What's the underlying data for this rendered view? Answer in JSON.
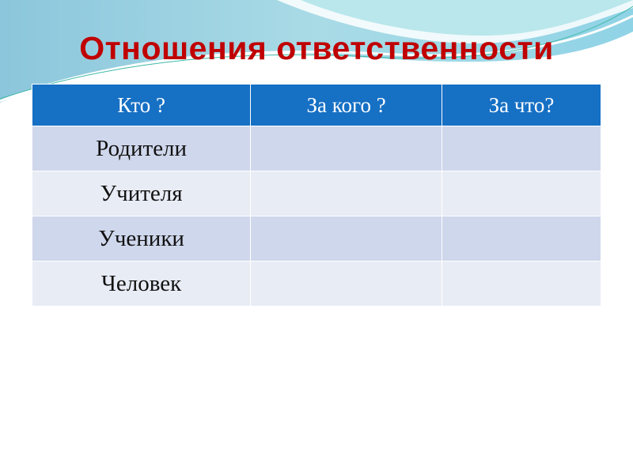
{
  "title": "Отношения ответственности",
  "table": {
    "headers": [
      "Кто ?",
      "За кого ?",
      "За что?"
    ],
    "rows": [
      [
        "Родители",
        "",
        ""
      ],
      [
        "Учителя",
        "",
        ""
      ],
      [
        "Ученики",
        "",
        ""
      ],
      [
        "Человек",
        "",
        ""
      ]
    ]
  },
  "colors": {
    "title": "#c00000",
    "header": "#1670c4",
    "row_odd": "#cfd7ec",
    "row_even": "#e8ecf5"
  }
}
